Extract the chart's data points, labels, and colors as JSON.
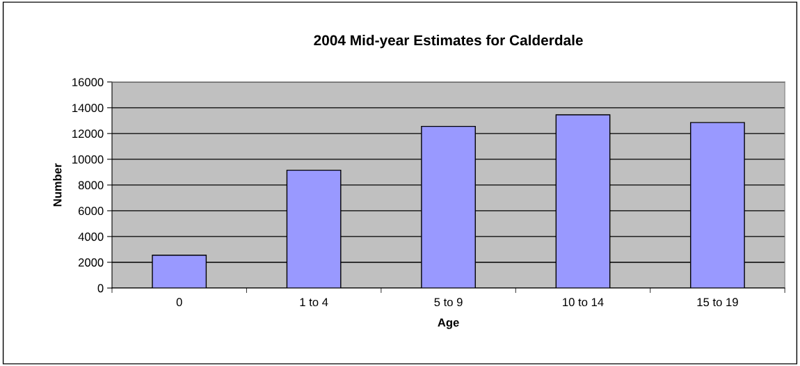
{
  "chart_data": {
    "type": "bar",
    "title": "2004 Mid-year Estimates for Calderdale",
    "xlabel": "Age",
    "ylabel": "Number",
    "categories": [
      "0",
      "1 to 4",
      "5 to 9",
      "10 to 14",
      "15 to 19"
    ],
    "values": [
      2550,
      9150,
      12550,
      13450,
      12850
    ],
    "color": "#9999ff",
    "ylim": [
      0,
      16000
    ],
    "yticks": [
      0,
      2000,
      4000,
      6000,
      8000,
      10000,
      12000,
      14000,
      16000
    ],
    "grid": "y",
    "legend": false
  }
}
